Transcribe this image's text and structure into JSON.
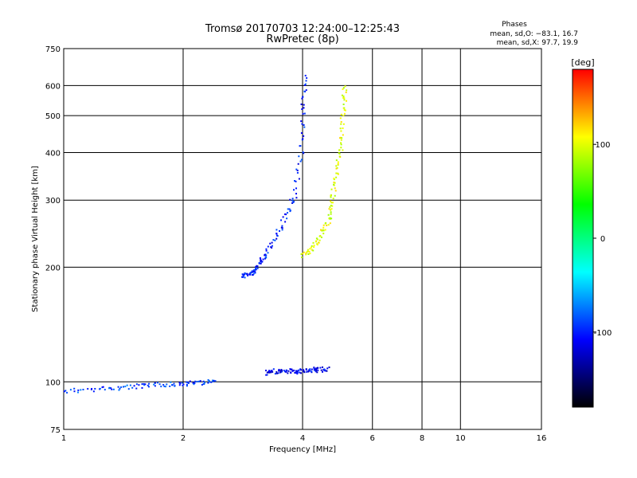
{
  "chart_data": {
    "type": "scatter",
    "title": "Tromsø 20170703 12:24:00–12:25:43",
    "subtitle": "RwPretec (8p)",
    "xlabel": "Frequency [MHz]",
    "ylabel": "Stationary phase Virtual Height [km]",
    "x_scale": "log",
    "y_scale": "log",
    "xlim": [
      1,
      16
    ],
    "ylim": [
      75,
      750
    ],
    "x_ticks": [
      1,
      2,
      4,
      6,
      8,
      10,
      16
    ],
    "y_ticks": [
      75,
      100,
      200,
      300,
      400,
      500,
      600,
      750
    ],
    "grid": true,
    "phases": {
      "heading": "Phases",
      "o_line": "mean, sd,O: −83.1, 16.7",
      "x_line": "mean, sd,X:  97.7, 19.9"
    },
    "colorbar": {
      "label": "[deg]",
      "range": [
        -180,
        180
      ],
      "ticks": [
        100,
        0,
        -100
      ],
      "colors": [
        "#ff0000",
        "#ffff00",
        "#00ff00",
        "#00ffff",
        "#0000ff",
        "#000000"
      ]
    },
    "traces": [
      {
        "freq": [
          1.0,
          1.2,
          1.4,
          1.6,
          1.8,
          2.0,
          2.2,
          2.4
        ],
        "height": [
          95,
          96,
          97,
          98,
          99,
          99,
          100,
          101
        ],
        "phase": -90
      },
      {
        "freq": [
          3.2,
          3.4,
          3.6,
          3.8,
          4.0,
          4.2,
          4.4,
          4.6
        ],
        "height": [
          106,
          107,
          107,
          107,
          107,
          108,
          108,
          109
        ],
        "phase": -110
      },
      {
        "freq": [
          2.8,
          2.9,
          3.0,
          3.1,
          3.2,
          3.4,
          3.6,
          3.8,
          3.95,
          4.0,
          4.05
        ],
        "height": [
          190,
          192,
          195,
          205,
          215,
          240,
          270,
          310,
          400,
          520,
          640
        ],
        "phase": -100
      },
      {
        "freq": [
          4.0,
          4.2,
          4.4,
          4.6,
          4.7,
          4.8,
          4.9,
          5.0,
          5.05,
          5.1
        ],
        "height": [
          215,
          225,
          240,
          260,
          290,
          330,
          380,
          440,
          520,
          600
        ],
        "phase": 100
      }
    ]
  }
}
